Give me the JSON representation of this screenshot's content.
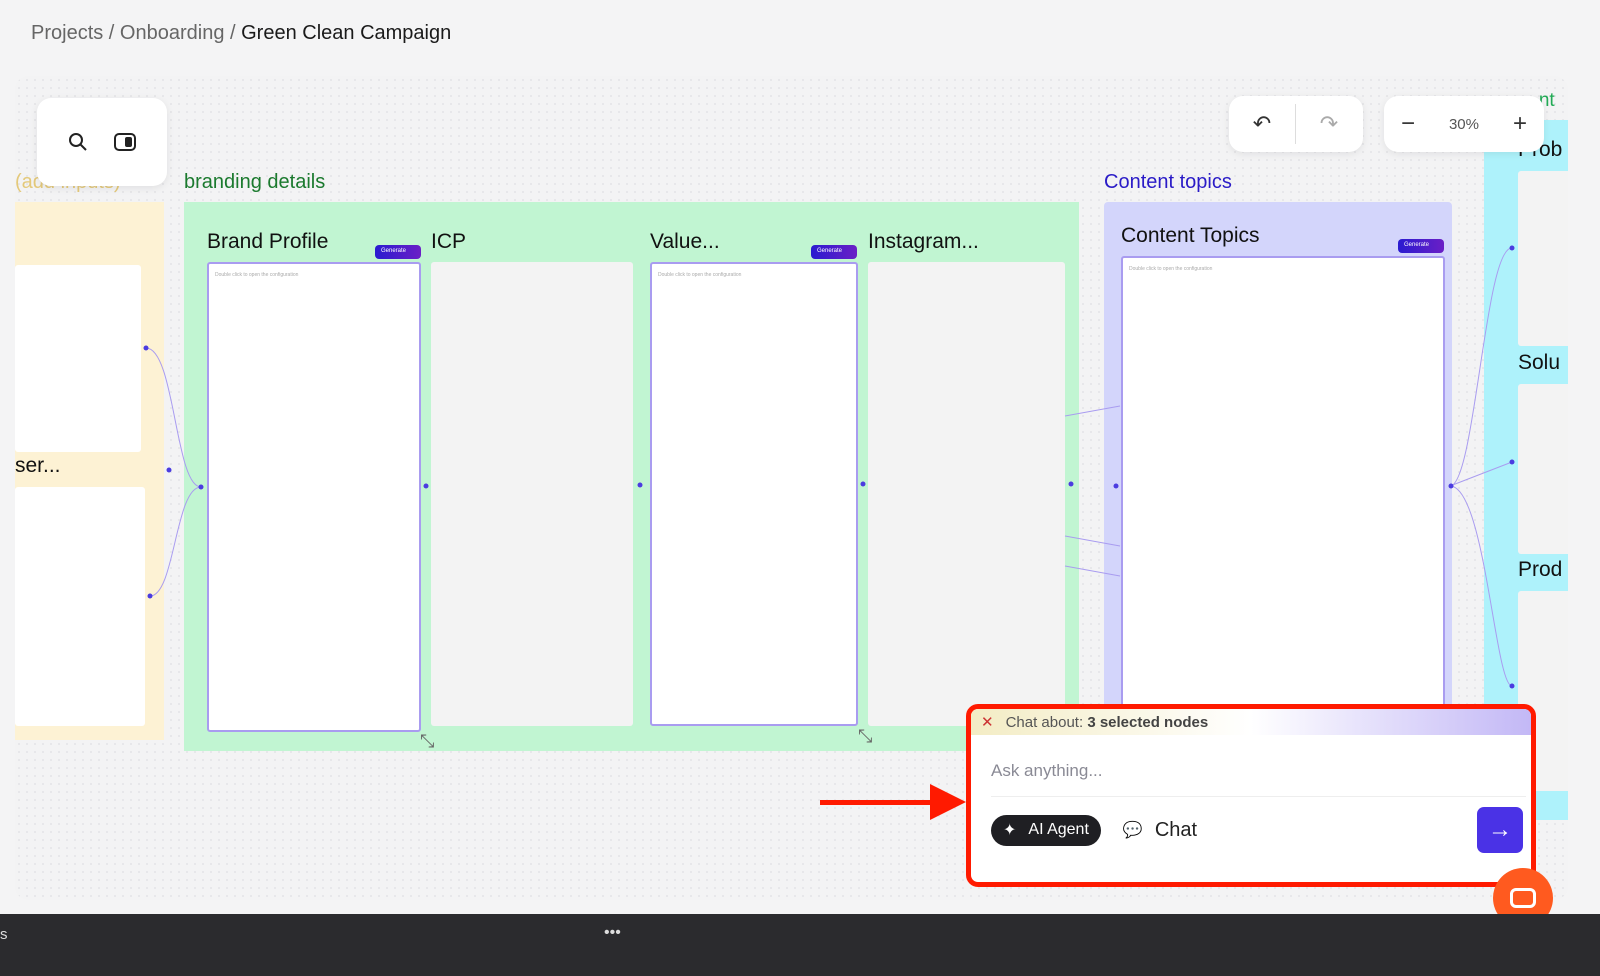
{
  "breadcrumb": {
    "items": [
      "Projects",
      "Onboarding"
    ],
    "current": "Green Clean Campaign",
    "separator": " / "
  },
  "toolbar": {
    "zoom": "30%"
  },
  "groups": {
    "left": {
      "label": "(add inputs)",
      "card_label": "ser..."
    },
    "branding": {
      "label": "branding details",
      "cards": [
        "Brand Profile",
        "ICP",
        "Value...",
        "Instagram..."
      ]
    },
    "content": {
      "label": "Content topics",
      "card": "Content Topics"
    },
    "right": {
      "label": "...nt",
      "cards": [
        "Prob",
        "Solu",
        "Prod"
      ]
    }
  },
  "card": {
    "generate": "Generate",
    "hint": "Double click to open the configuration"
  },
  "chat": {
    "prefix": "Chat about:",
    "context": "3 selected nodes",
    "placeholder": "Ask anything...",
    "ai_agent": "AI Agent",
    "chat": "Chat"
  },
  "bottombar": {
    "left": "s",
    "menu": "•••"
  },
  "colors": {
    "accent": "#4a32e6",
    "highlight": "#ff1a00",
    "branding_group": "#c1f5d2",
    "content_group": "#d3d5fb",
    "input_group": "#fdf2d4",
    "right_group": "#aef2fb"
  }
}
